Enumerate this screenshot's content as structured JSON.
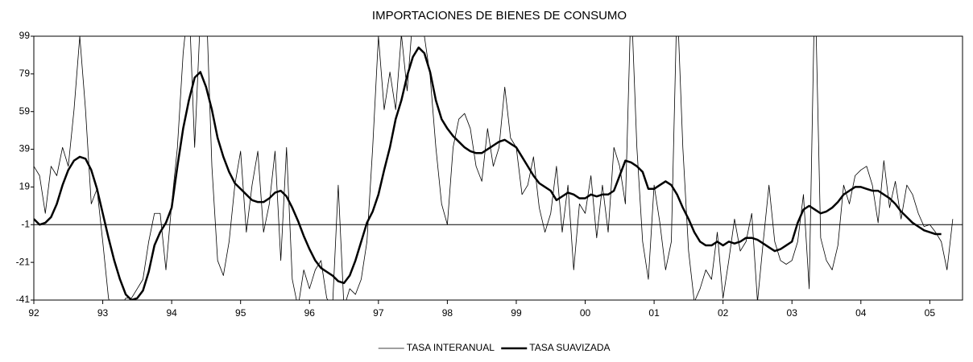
{
  "chart_data": {
    "type": "line",
    "title": "IMPORTACIONES DE BIENES DE CONSUMO",
    "categories": [
      "92",
      null,
      null,
      null,
      null,
      null,
      null,
      null,
      null,
      null,
      null,
      null,
      "93",
      null,
      null,
      null,
      null,
      null,
      null,
      null,
      null,
      null,
      null,
      null,
      "94",
      null,
      null,
      null,
      null,
      null,
      null,
      null,
      null,
      null,
      null,
      null,
      "95",
      null,
      null,
      null,
      null,
      null,
      null,
      null,
      null,
      null,
      null,
      null,
      "96",
      null,
      null,
      null,
      null,
      null,
      null,
      null,
      null,
      null,
      null,
      null,
      "97",
      null,
      null,
      null,
      null,
      null,
      null,
      null,
      null,
      null,
      null,
      null,
      "98",
      null,
      null,
      null,
      null,
      null,
      null,
      null,
      null,
      null,
      null,
      null,
      "99",
      null,
      null,
      null,
      null,
      null,
      null,
      null,
      null,
      null,
      null,
      null,
      "00",
      null,
      null,
      null,
      null,
      null,
      null,
      null,
      null,
      null,
      null,
      null,
      "01",
      null,
      null,
      null,
      null,
      null,
      null,
      null,
      null,
      null,
      null,
      null,
      "02",
      null,
      null,
      null,
      null,
      null,
      null,
      null,
      null,
      null,
      null,
      null,
      "03",
      null,
      null,
      null,
      null,
      null,
      null,
      null,
      null,
      null,
      null,
      null,
      "04",
      null,
      null,
      null,
      null,
      null,
      null,
      null,
      null,
      null,
      null,
      null,
      "05",
      null,
      null,
      null,
      null
    ],
    "series": [
      {
        "name": "TASA INTERANUAL",
        "color": "#000000",
        "width": "thin",
        "values": [
          30,
          25,
          5,
          30,
          25,
          40,
          30,
          60,
          99,
          60,
          10,
          18,
          -10,
          -40,
          -50,
          -45,
          -40,
          -40,
          -35,
          -30,
          -10,
          5,
          5,
          -25,
          10,
          40,
          90,
          120,
          40,
          110,
          120,
          30,
          -20,
          -28,
          -10,
          20,
          38,
          -5,
          20,
          38,
          -5,
          10,
          38,
          -20,
          40,
          -30,
          -45,
          -25,
          -35,
          -25,
          -20,
          -40,
          -45,
          20,
          -45,
          -35,
          -38,
          -30,
          -10,
          40,
          99,
          60,
          80,
          60,
          100,
          70,
          110,
          99,
          99,
          78,
          40,
          10,
          -1,
          40,
          55,
          58,
          50,
          30,
          22,
          50,
          30,
          40,
          72,
          45,
          40,
          15,
          20,
          35,
          8,
          -5,
          5,
          30,
          -5,
          20,
          -25,
          10,
          5,
          25,
          -8,
          20,
          -5,
          40,
          30,
          10,
          120,
          40,
          -10,
          -30,
          20,
          0,
          -25,
          -10,
          120,
          40,
          -15,
          -42,
          -35,
          -25,
          -30,
          -5,
          -40,
          -20,
          2,
          -15,
          -10,
          5,
          -42,
          -10,
          20,
          -10,
          -20,
          -22,
          -20,
          -10,
          15,
          -35,
          130,
          -8,
          -20,
          -25,
          -12,
          20,
          10,
          25,
          28,
          30,
          20,
          0,
          33,
          8,
          22,
          2,
          20,
          15,
          5,
          -2,
          -1,
          -5,
          -10,
          -25,
          2
        ]
      },
      {
        "name": "TASA SUAVIZADA",
        "color": "#000000",
        "width": "thick",
        "values": [
          2,
          -1,
          0,
          3,
          10,
          20,
          28,
          33,
          35,
          34,
          28,
          18,
          5,
          -8,
          -20,
          -30,
          -38,
          -41,
          -40,
          -36,
          -26,
          -12,
          -5,
          0,
          8,
          30,
          50,
          65,
          77,
          80,
          72,
          60,
          45,
          35,
          27,
          21,
          18,
          15,
          12,
          11,
          11,
          13,
          16,
          17,
          14,
          8,
          1,
          -7,
          -14,
          -20,
          -24,
          -26,
          -28,
          -31,
          -32,
          -28,
          -20,
          -10,
          0,
          6,
          15,
          28,
          40,
          55,
          65,
          78,
          88,
          93,
          90,
          80,
          65,
          55,
          50,
          46,
          43,
          40,
          38,
          37,
          37,
          39,
          41,
          43,
          44,
          42,
          40,
          35,
          30,
          25,
          21,
          19,
          17,
          12,
          14,
          16,
          15,
          13,
          13,
          15,
          14,
          15,
          15,
          17,
          25,
          33,
          32,
          30,
          27,
          18,
          18,
          20,
          22,
          20,
          15,
          8,
          2,
          -5,
          -10,
          -12,
          -12,
          -10,
          -12,
          -10,
          -11,
          -10,
          -8,
          -8,
          -9,
          -11,
          -13,
          -15,
          -14,
          -12,
          -10,
          0,
          7,
          9,
          7,
          5,
          6,
          8,
          11,
          15,
          17,
          19,
          19,
          18,
          17,
          17,
          15,
          13,
          10,
          6,
          3,
          0,
          -2,
          -4,
          -5,
          -6,
          -6,
          null,
          null
        ]
      }
    ],
    "ylim": [
      -41,
      99
    ],
    "yticks": [
      -41,
      -21,
      -1,
      19,
      39,
      59,
      79,
      99
    ],
    "legend": "bottom"
  }
}
